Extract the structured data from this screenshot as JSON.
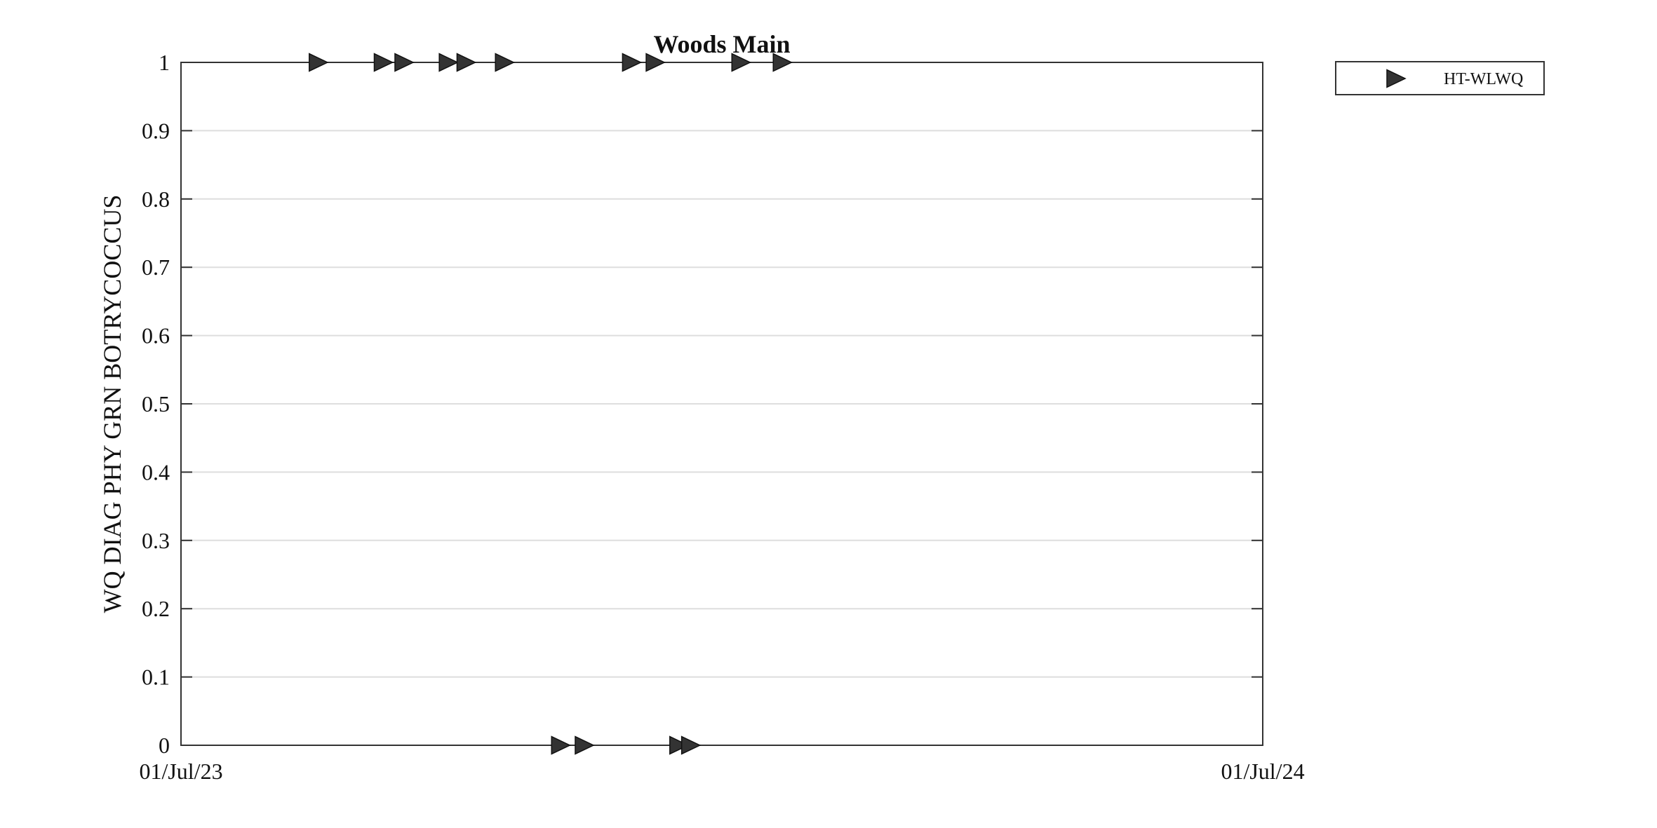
{
  "chart_data": {
    "type": "scatter",
    "title": "Woods Main",
    "xlabel": "",
    "ylabel": "WQ DIAG PHY GRN BOTRYCOCCUS",
    "xlim": [
      "2023-07-01",
      "2024-07-01"
    ],
    "xtick_labels": [
      "01/Jul/23",
      "01/Jul/24"
    ],
    "ylim": [
      0,
      1
    ],
    "yticks": [
      0,
      0.1,
      0.2,
      0.3,
      0.4,
      0.5,
      0.6,
      0.7,
      0.8,
      0.9,
      1
    ],
    "ytick_labels": [
      "0",
      "0.1",
      "0.2",
      "0.3",
      "0.4",
      "0.5",
      "0.6",
      "0.7",
      "0.8",
      "0.9",
      "1"
    ],
    "grid": true,
    "legend_position": "outside-top-right",
    "marker": "triangle-right",
    "marker_color": "#333333",
    "series": [
      {
        "name": "HT-WLWQ",
        "points": [
          {
            "x": "2023-08-16",
            "y": 1
          },
          {
            "x": "2023-09-07",
            "y": 1
          },
          {
            "x": "2023-09-14",
            "y": 1
          },
          {
            "x": "2023-09-29",
            "y": 1
          },
          {
            "x": "2023-10-05",
            "y": 1
          },
          {
            "x": "2023-10-18",
            "y": 1
          },
          {
            "x": "2023-11-06",
            "y": 0
          },
          {
            "x": "2023-11-14",
            "y": 0
          },
          {
            "x": "2023-11-30",
            "y": 1
          },
          {
            "x": "2023-12-08",
            "y": 1
          },
          {
            "x": "2023-12-16",
            "y": 0
          },
          {
            "x": "2023-12-20",
            "y": 0
          },
          {
            "x": "2024-01-06",
            "y": 1
          },
          {
            "x": "2024-01-20",
            "y": 1
          }
        ]
      }
    ]
  }
}
